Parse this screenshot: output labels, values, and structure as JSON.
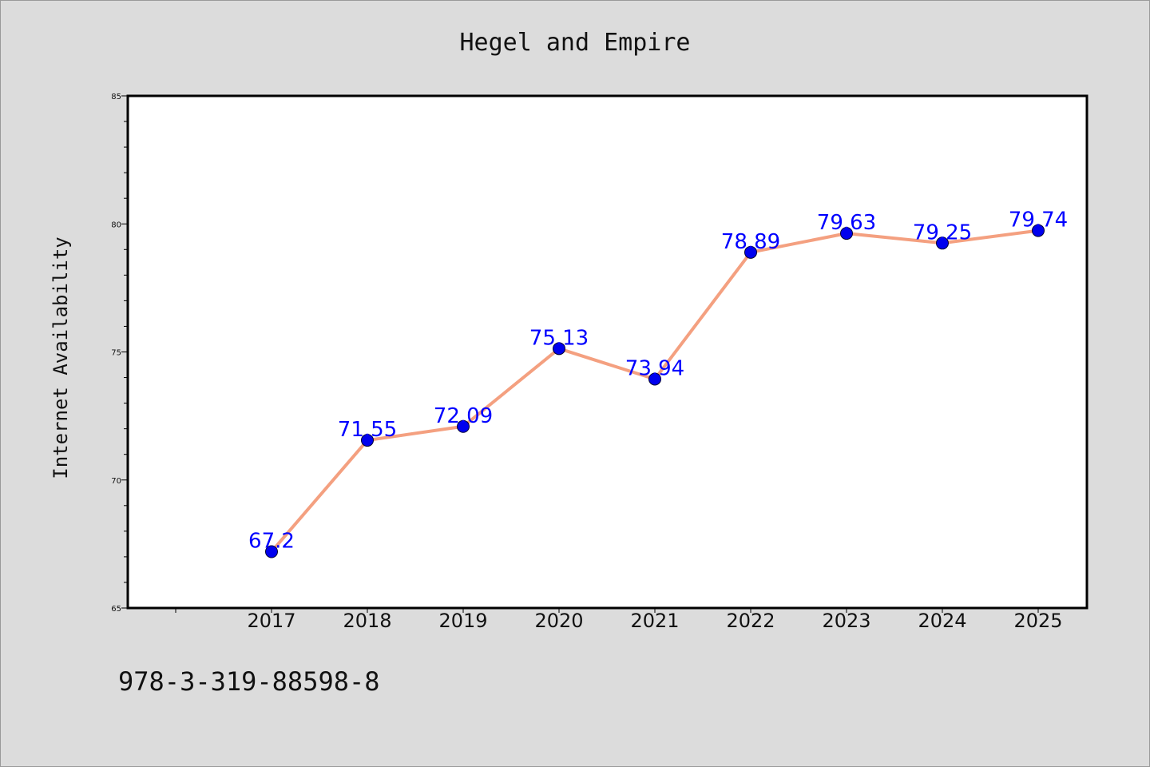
{
  "chart_data": {
    "type": "line",
    "title": "Hegel and Empire",
    "xlabel": "",
    "ylabel": "Internet Availability",
    "categories": [
      "2017",
      "2018",
      "2019",
      "2020",
      "2021",
      "2022",
      "2023",
      "2024",
      "2025"
    ],
    "series": [
      {
        "values": [
          67.2,
          71.55,
          72.09,
          75.13,
          73.94,
          78.89,
          79.63,
          79.25,
          79.74
        ],
        "labels": [
          "67.2",
          "71.55",
          "72.09",
          "75.13",
          "73.94",
          "78.89",
          "79.63",
          "79.25",
          "79.74"
        ]
      }
    ],
    "ylim": [
      65,
      85
    ],
    "yticks": [
      "65",
      "70",
      "75",
      "80",
      "85"
    ],
    "grid": false,
    "legend": "none",
    "colors": {
      "line": "#f4a080",
      "marker": "#0000ee",
      "marker_edge": "#000033",
      "data_label": "#0000ff",
      "plot_background": "#ffffff",
      "page_background": "#dcdcdc"
    }
  },
  "footer": {
    "code": "978-3-319-88598-8"
  }
}
